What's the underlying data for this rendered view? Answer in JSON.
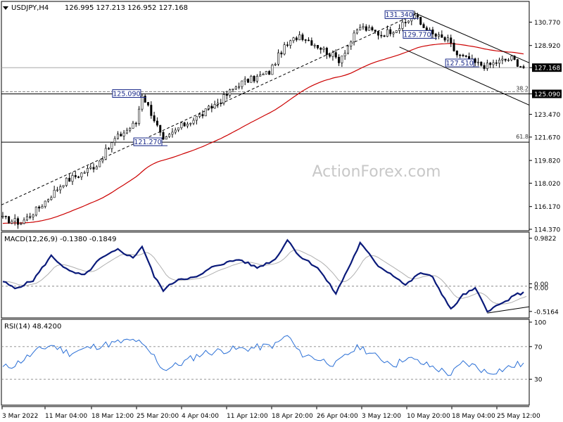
{
  "header": {
    "symbol": "USDJPY,H4",
    "ohlc": "126.995 127.213 126.952 127.168"
  },
  "watermark": "ActionForex.com",
  "colors": {
    "candles": "#000000",
    "ema": "#cc0000",
    "macd": "#0a1a7a",
    "signal": "#b0b0b0",
    "rsi": "#2a6fd6",
    "annotation": "#1a2a8a"
  },
  "chart_data": [
    {
      "type": "candlestick",
      "panel": "price",
      "ylim": [
        114.37,
        132.3
      ],
      "y_ticks": [
        "130.770",
        "128.920",
        "127.168",
        "125.090",
        "123.470",
        "121.670",
        "119.820",
        "118.020",
        "116.170",
        "114.370"
      ],
      "x_ticks": [
        "3 Mar 2022",
        "11 Mar 04:00",
        "18 Mar 12:00",
        "25 Mar 20:00",
        "4 Apr 04:00",
        "11 Apr 12:00",
        "18 Apr 20:00",
        "26 Apr 04:00",
        "3 May 12:00",
        "10 May 20:00",
        "18 May 04:00",
        "25 May 12:00"
      ],
      "price_path": [
        [
          0,
          115.2
        ],
        [
          6,
          114.9
        ],
        [
          12,
          116.1
        ],
        [
          20,
          118.1
        ],
        [
          26,
          118.8
        ],
        [
          31,
          119.5
        ],
        [
          37,
          121.5
        ],
        [
          44,
          122.8
        ],
        [
          46,
          125.09
        ],
        [
          50,
          123.1
        ],
        [
          53,
          121.27
        ],
        [
          58,
          122.4
        ],
        [
          66,
          123.5
        ],
        [
          73,
          124.8
        ],
        [
          78,
          125.9
        ],
        [
          84,
          126.4
        ],
        [
          88,
          126.8
        ],
        [
          92,
          128.5
        ],
        [
          98,
          129.8
        ],
        [
          104,
          128.9
        ],
        [
          111,
          127.8
        ],
        [
          118,
          130.4
        ],
        [
          125,
          129.8
        ],
        [
          132,
          130.5
        ],
        [
          136,
          131.34
        ],
        [
          138,
          130.6
        ],
        [
          142,
          129.77
        ],
        [
          147,
          129.3
        ],
        [
          150,
          128.2
        ],
        [
          156,
          127.51
        ],
        [
          160,
          127.3
        ],
        [
          163,
          127.6
        ],
        [
          168,
          127.9
        ],
        [
          172,
          127.17
        ]
      ],
      "current_price": "127.168",
      "current_level": 127.168,
      "annotations": [
        {
          "label": "131.340",
          "value": 131.34,
          "slot": 136
        },
        {
          "label": "129.770",
          "value": 129.77,
          "slot": 142
        },
        {
          "label": "127.510",
          "value": 127.51,
          "slot": 156
        },
        {
          "label": "125.090",
          "value": 125.09,
          "slot": 46
        },
        {
          "label": "121.270",
          "value": 121.27,
          "slot": 53
        }
      ],
      "horizontal_levels": [
        {
          "value": 125.09,
          "label": "125.090",
          "fib": "38.2"
        },
        {
          "value": 121.27,
          "fib": "61.8"
        }
      ],
      "ema_period": 55
    },
    {
      "type": "line",
      "panel": "macd",
      "title": "MACD(12,26,9) -0.1380 -0.1849",
      "ylim": [
        -0.62,
        1.05
      ],
      "y_ticks": [
        "0.9822",
        "0.00",
        "0.00",
        "-0.5164"
      ],
      "macd_path": [
        [
          0,
          0.1
        ],
        [
          4,
          -0.05
        ],
        [
          10,
          0.12
        ],
        [
          16,
          0.62
        ],
        [
          22,
          0.3
        ],
        [
          27,
          0.22
        ],
        [
          32,
          0.55
        ],
        [
          38,
          0.75
        ],
        [
          43,
          0.58
        ],
        [
          46,
          0.82
        ],
        [
          50,
          0.2
        ],
        [
          53,
          -0.08
        ],
        [
          58,
          0.15
        ],
        [
          64,
          0.18
        ],
        [
          70,
          0.42
        ],
        [
          78,
          0.55
        ],
        [
          84,
          0.38
        ],
        [
          90,
          0.55
        ],
        [
          94,
          0.95
        ],
        [
          98,
          0.62
        ],
        [
          104,
          0.38
        ],
        [
          110,
          -0.15
        ],
        [
          115,
          0.48
        ],
        [
          118,
          0.88
        ],
        [
          124,
          0.42
        ],
        [
          130,
          0.18
        ],
        [
          133,
          0.02
        ],
        [
          138,
          0.28
        ],
        [
          142,
          0.18
        ],
        [
          148,
          -0.48
        ],
        [
          152,
          -0.18
        ],
        [
          156,
          -0.05
        ],
        [
          160,
          -0.5
        ],
        [
          165,
          -0.35
        ],
        [
          170,
          -0.16
        ],
        [
          172,
          -0.14
        ]
      ],
      "signal_value": -0.1849
    },
    {
      "type": "line",
      "panel": "rsi",
      "title": "RSI(14) 48.4200",
      "ylim": [
        0,
        100
      ],
      "y_ticks": [
        "100",
        "70",
        "30"
      ],
      "levels": [
        70,
        30
      ],
      "rsi_path": [
        [
          0,
          44
        ],
        [
          4,
          48
        ],
        [
          12,
          66
        ],
        [
          16,
          72
        ],
        [
          22,
          62
        ],
        [
          30,
          70
        ],
        [
          38,
          75
        ],
        [
          44,
          78
        ],
        [
          50,
          58
        ],
        [
          53,
          42
        ],
        [
          58,
          48
        ],
        [
          66,
          62
        ],
        [
          74,
          66
        ],
        [
          82,
          68
        ],
        [
          90,
          72
        ],
        [
          94,
          84
        ],
        [
          98,
          62
        ],
        [
          104,
          55
        ],
        [
          110,
          48
        ],
        [
          115,
          64
        ],
        [
          118,
          70
        ],
        [
          124,
          56
        ],
        [
          130,
          48
        ],
        [
          133,
          57
        ],
        [
          138,
          50
        ],
        [
          142,
          45
        ],
        [
          148,
          36
        ],
        [
          152,
          50
        ],
        [
          156,
          46
        ],
        [
          160,
          38
        ],
        [
          165,
          42
        ],
        [
          170,
          48
        ],
        [
          172,
          48.42
        ]
      ]
    }
  ]
}
